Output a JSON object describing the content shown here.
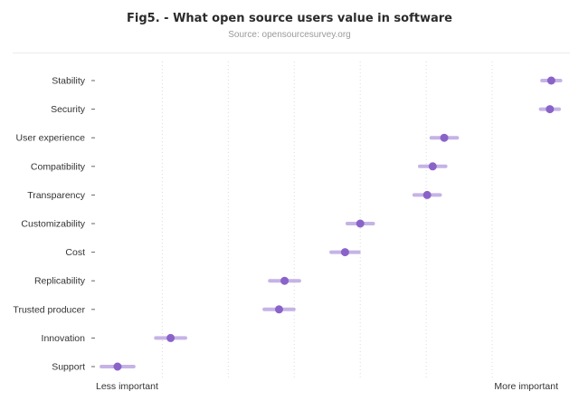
{
  "chart_data": {
    "type": "scatter",
    "title": "Fig5. - What open source users value in software",
    "subtitle": "Source: opensourcesurvey.org",
    "xlabel_min": "Less important",
    "xlabel_max": "More important",
    "xlim": [
      0,
      1
    ],
    "grid": true,
    "colors": {
      "point": "#8a63c9",
      "error": "#c5b3e6",
      "grid": "#dcdcdc",
      "tick": "#666666"
    },
    "categories": [
      "Stability",
      "Security",
      "User experience",
      "Compatibility",
      "Transparency",
      "Customizability",
      "Cost",
      "Replicability",
      "Trusted producer",
      "Innovation",
      "Support"
    ],
    "values": [
      0.985,
      0.982,
      0.753,
      0.728,
      0.716,
      0.571,
      0.538,
      0.407,
      0.395,
      0.16,
      0.045
    ],
    "error": [
      0.02,
      0.02,
      0.028,
      0.028,
      0.028,
      0.028,
      0.03,
      0.032,
      0.032,
      0.032,
      0.035
    ]
  }
}
